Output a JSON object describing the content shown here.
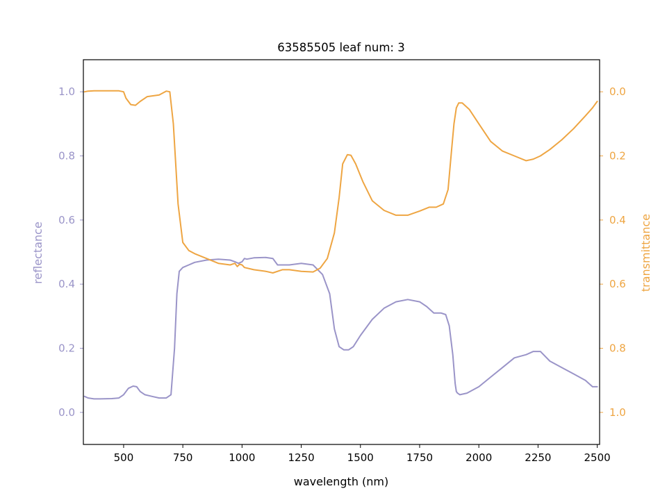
{
  "chart_data": {
    "type": "line",
    "title": "63585505 leaf num: 3",
    "xlabel": "wavelength (nm)",
    "ylabel_left": "reflectance",
    "ylabel_right": "transmittance",
    "xlim": [
      330,
      2510
    ],
    "ylim_left": [
      -0.1,
      1.1
    ],
    "ylim_right": [
      1.1,
      -0.1
    ],
    "right_axis_inverted": true,
    "x_ticks": [
      500,
      750,
      1000,
      1250,
      1500,
      1750,
      2000,
      2250,
      2500
    ],
    "x_tick_labels": [
      "500",
      "750",
      "1000",
      "1250",
      "1500",
      "1750",
      "2000",
      "2250",
      "2500"
    ],
    "y_ticks_left": [
      0.0,
      0.2,
      0.4,
      0.6,
      0.8,
      1.0
    ],
    "y_tick_labels_left": [
      "0.0",
      "0.2",
      "0.4",
      "0.6",
      "0.8",
      "1.0"
    ],
    "y_ticks_right": [
      0.0,
      0.2,
      0.4,
      0.6,
      0.8,
      1.0
    ],
    "y_tick_labels_right": [
      "0.0",
      "0.2",
      "0.4",
      "0.6",
      "0.8",
      "1.0"
    ],
    "grid": false,
    "colors": {
      "reflectance": "#9a94c8",
      "transmittance": "#eea542",
      "axis": "#000000"
    },
    "series": [
      {
        "key": "reflectance",
        "axis": "left",
        "x": [
          335,
          350,
          375,
          400,
          450,
          480,
          500,
          520,
          540,
          555,
          570,
          590,
          620,
          650,
          680,
          700,
          715,
          725,
          735,
          750,
          775,
          800,
          850,
          900,
          950,
          970,
          985,
          1000,
          1010,
          1020,
          1050,
          1100,
          1130,
          1150,
          1200,
          1250,
          1300,
          1340,
          1370,
          1390,
          1410,
          1430,
          1450,
          1470,
          1500,
          1550,
          1600,
          1650,
          1700,
          1750,
          1780,
          1810,
          1840,
          1860,
          1875,
          1890,
          1900,
          1905,
          1910,
          1920,
          1950,
          2000,
          2050,
          2100,
          2150,
          2200,
          2230,
          2260,
          2300,
          2350,
          2400,
          2450,
          2480,
          2500
        ],
        "y": [
          0.05,
          0.045,
          0.042,
          0.042,
          0.043,
          0.045,
          0.055,
          0.075,
          0.082,
          0.08,
          0.065,
          0.055,
          0.05,
          0.045,
          0.045,
          0.055,
          0.2,
          0.37,
          0.44,
          0.452,
          0.46,
          0.468,
          0.475,
          0.478,
          0.475,
          0.47,
          0.465,
          0.47,
          0.48,
          0.478,
          0.482,
          0.483,
          0.48,
          0.46,
          0.46,
          0.465,
          0.46,
          0.43,
          0.37,
          0.26,
          0.205,
          0.195,
          0.195,
          0.205,
          0.24,
          0.29,
          0.325,
          0.345,
          0.352,
          0.345,
          0.33,
          0.31,
          0.31,
          0.305,
          0.27,
          0.18,
          0.09,
          0.065,
          0.06,
          0.055,
          0.06,
          0.08,
          0.11,
          0.14,
          0.17,
          0.18,
          0.19,
          0.19,
          0.16,
          0.14,
          0.12,
          0.1,
          0.08,
          0.08
        ]
      },
      {
        "key": "transmittance",
        "axis": "right",
        "x": [
          335,
          350,
          375,
          400,
          450,
          480,
          500,
          510,
          530,
          550,
          570,
          600,
          650,
          680,
          695,
          710,
          730,
          750,
          775,
          800,
          850,
          900,
          950,
          970,
          980,
          990,
          1000,
          1010,
          1050,
          1100,
          1130,
          1170,
          1200,
          1250,
          1300,
          1330,
          1360,
          1390,
          1410,
          1425,
          1445,
          1460,
          1480,
          1510,
          1550,
          1600,
          1650,
          1700,
          1750,
          1790,
          1820,
          1850,
          1870,
          1885,
          1895,
          1905,
          1915,
          1930,
          1960,
          2000,
          2050,
          2100,
          2150,
          2200,
          2230,
          2260,
          2300,
          2350,
          2400,
          2450,
          2480,
          2500
        ],
        "y": [
          0.0,
          -0.002,
          -0.003,
          -0.003,
          -0.003,
          -0.003,
          0.0,
          0.02,
          0.04,
          0.042,
          0.03,
          0.015,
          0.01,
          -0.002,
          0.0,
          0.1,
          0.35,
          0.47,
          0.495,
          0.505,
          0.52,
          0.535,
          0.54,
          0.535,
          0.545,
          0.538,
          0.54,
          0.548,
          0.555,
          0.56,
          0.565,
          0.555,
          0.555,
          0.56,
          0.562,
          0.55,
          0.52,
          0.44,
          0.33,
          0.225,
          0.196,
          0.198,
          0.225,
          0.28,
          0.34,
          0.37,
          0.385,
          0.385,
          0.372,
          0.36,
          0.36,
          0.35,
          0.305,
          0.18,
          0.1,
          0.05,
          0.035,
          0.035,
          0.055,
          0.1,
          0.155,
          0.185,
          0.2,
          0.215,
          0.21,
          0.2,
          0.18,
          0.15,
          0.115,
          0.075,
          0.05,
          0.03
        ]
      }
    ]
  }
}
